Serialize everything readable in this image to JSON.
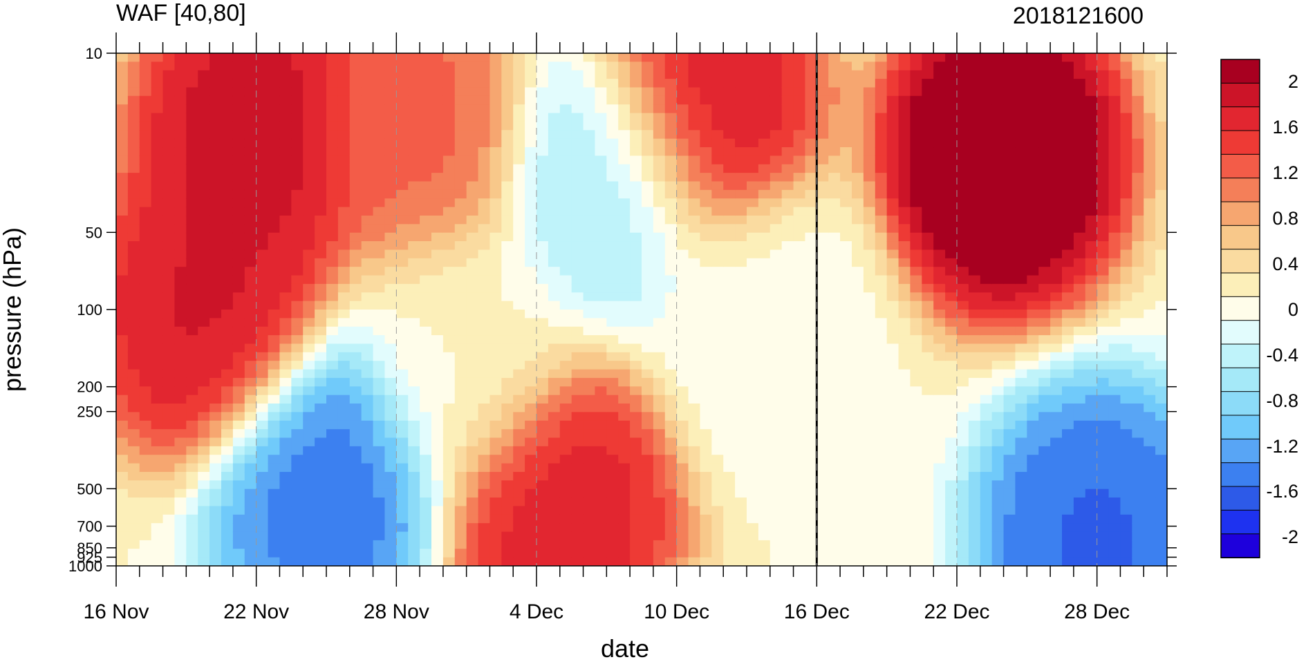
{
  "chart_data": {
    "type": "heatmap",
    "title_left": "WAF [40,80]",
    "title_right": "2018121600",
    "xlabel": "date",
    "ylabel": "pressure (hPa)",
    "x_tick_labels": [
      "16 Nov",
      "22 Nov",
      "28 Nov",
      "4 Dec",
      "10 Dec",
      "16 Dec",
      "22 Dec",
      "28 Dec"
    ],
    "x_range_days": [
      "2018-11-16",
      "2018-12-31"
    ],
    "y_ticks": [
      10,
      50,
      100,
      200,
      250,
      500,
      700,
      850,
      925,
      1000
    ],
    "y_tick_labels": [
      "10",
      "50",
      "100",
      "200",
      "250",
      "500",
      "700",
      "850",
      "925",
      "1000"
    ],
    "y_scale": "log",
    "y_range": [
      1000,
      10
    ],
    "current_date_marker": "16 Dec",
    "colorbar": {
      "labels": [
        "2",
        "1.6",
        "1.2",
        "0.8",
        "0.4",
        "0",
        "-0.4",
        "-0.8",
        "-1.2",
        "-1.6",
        "-2"
      ],
      "levels": [
        -2.2,
        -2.0,
        -1.8,
        -1.6,
        -1.4,
        -1.2,
        -1.0,
        -0.8,
        -0.6,
        -0.4,
        -0.2,
        0.0,
        0.2,
        0.4,
        0.6,
        0.8,
        1.0,
        1.2,
        1.4,
        1.6,
        1.8,
        2.0,
        2.2
      ],
      "colors": [
        "#1e00dc",
        "#1e32f0",
        "#2d5ae8",
        "#3c80f0",
        "#58a5f5",
        "#70cafa",
        "#8cdbf8",
        "#a5e9f8",
        "#bff3fa",
        "#e2fcfd",
        "#fffdea",
        "#fcefb9",
        "#fadba0",
        "#f8c88a",
        "#f6a670",
        "#f47f59",
        "#f35c48",
        "#ee3a35",
        "#e22630",
        "#cc1428",
        "#a80020"
      ]
    },
    "features": [
      {
        "date": "2018-11-20",
        "p": 100,
        "value": 1.7
      },
      {
        "date": "2018-11-22",
        "p": 20,
        "value": 1.8
      },
      {
        "date": "2018-11-29",
        "p": 20,
        "value": 1.1
      },
      {
        "date": "2018-12-01",
        "p": 150,
        "value": 0.0
      },
      {
        "date": "2018-12-07",
        "p": 30,
        "value": -0.7
      },
      {
        "date": "2018-12-05",
        "p": 600,
        "value": 1.6
      },
      {
        "date": "2018-11-25",
        "p": 480,
        "value": -1.6
      },
      {
        "date": "2018-12-11",
        "p": 15,
        "value": 1.7
      },
      {
        "date": "2018-12-14",
        "p": 120,
        "value": -0.1
      },
      {
        "date": "2018-12-24",
        "p": 25,
        "value": 2.3
      },
      {
        "date": "2018-12-28",
        "p": 780,
        "value": -1.7
      }
    ]
  }
}
